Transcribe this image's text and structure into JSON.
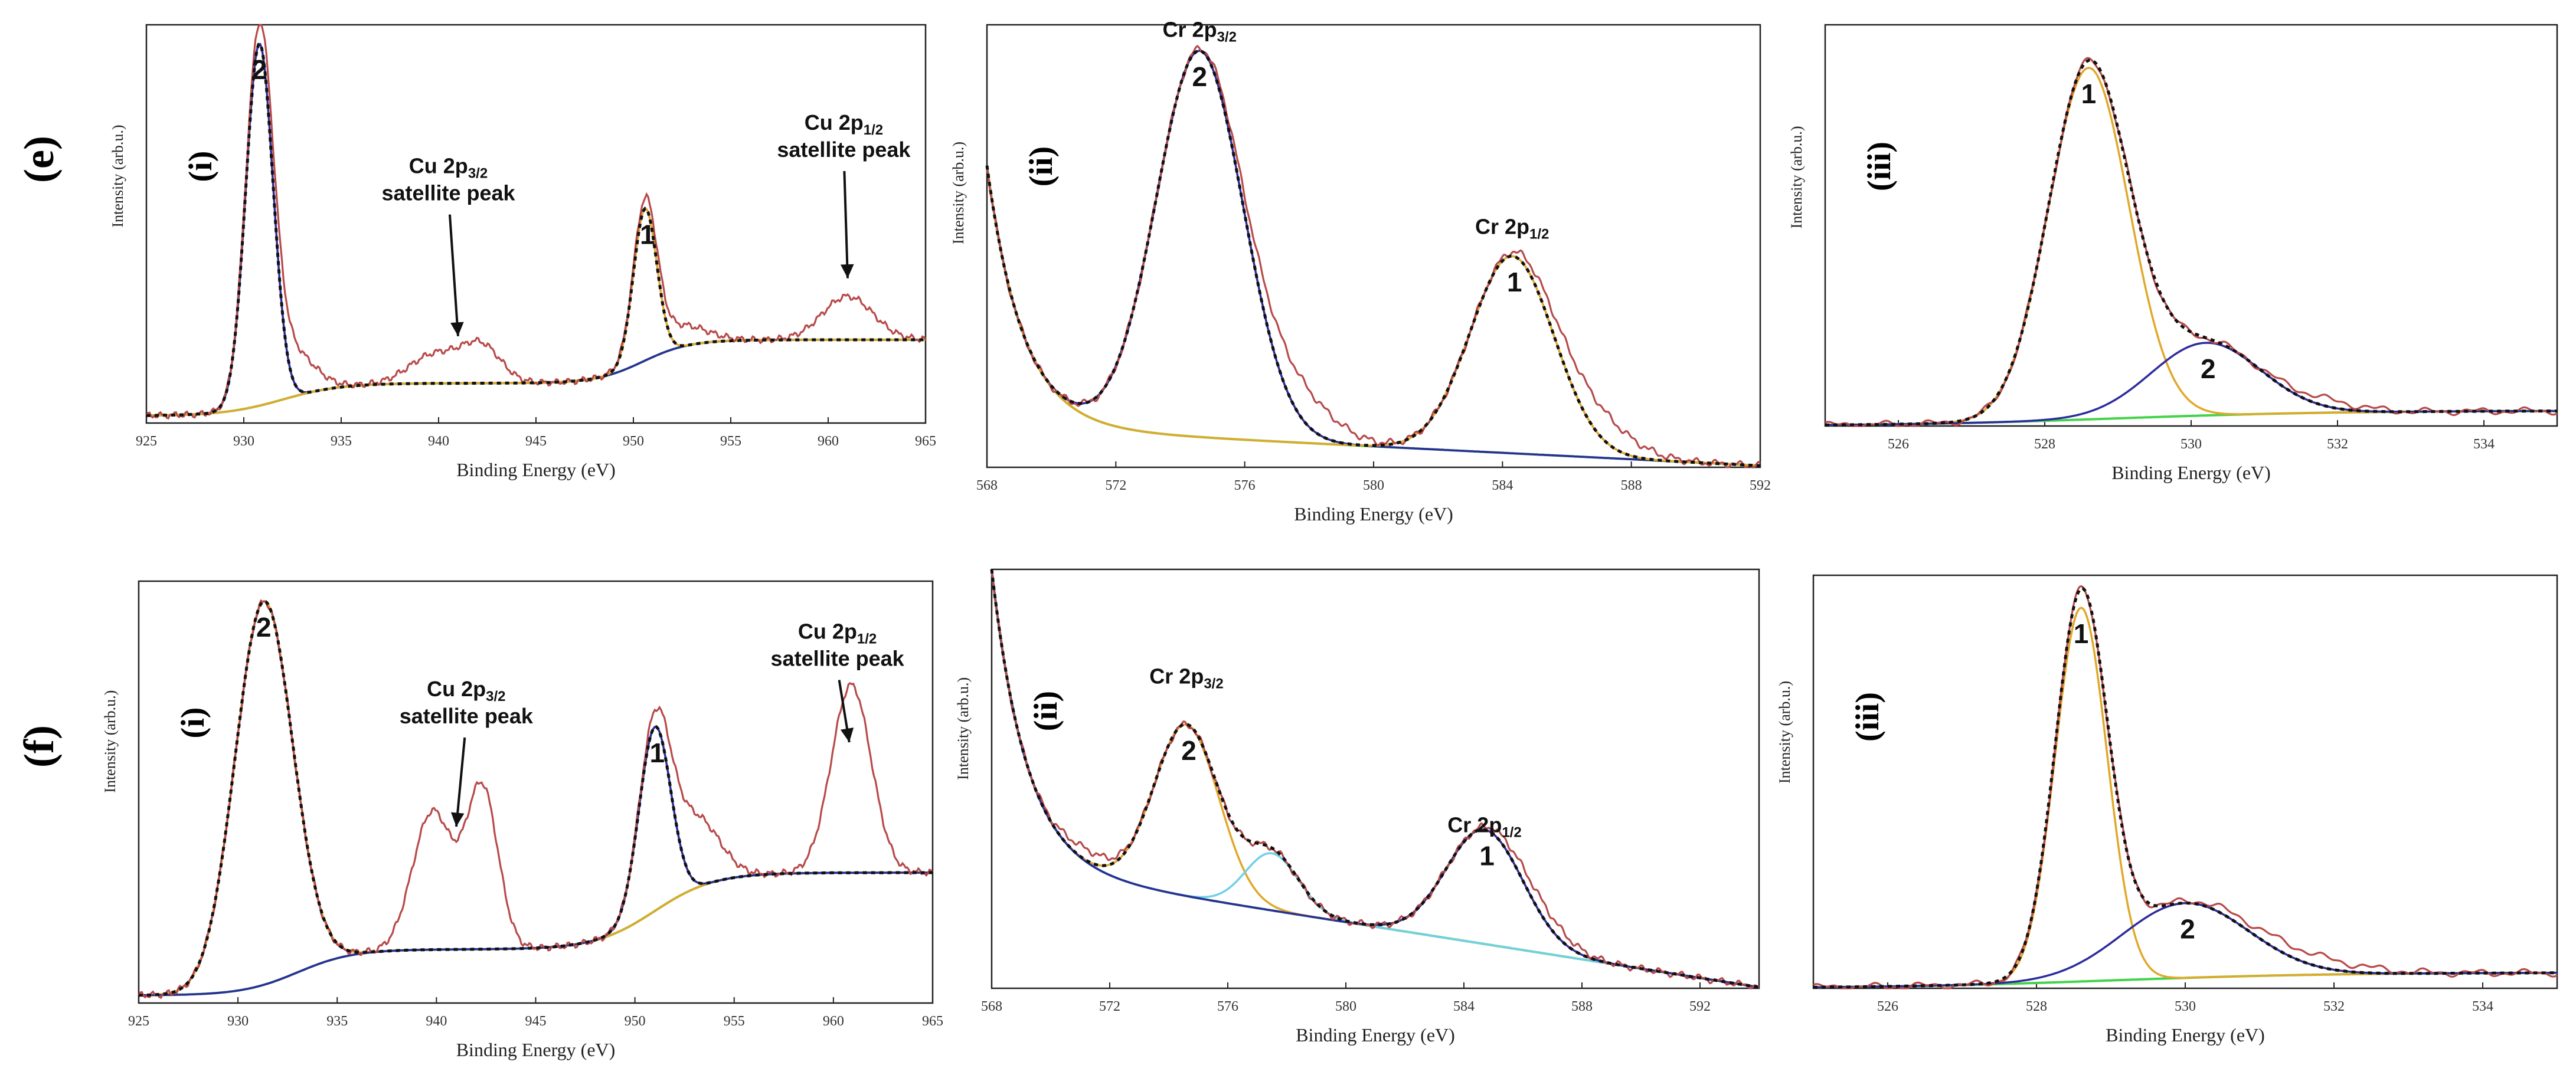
{
  "figure": {
    "rows": [
      {
        "label": "(e)",
        "panels": [
          0,
          1,
          2
        ]
      },
      {
        "label": "(f)",
        "panels": [
          3,
          4,
          5
        ]
      }
    ]
  },
  "colors": {
    "experimental": "#b84a4a",
    "envelope": "#111111",
    "peak_blue": "#2c2c9c",
    "peak_gold": "#e0a82a",
    "peak_cyan": "#6fd0e8",
    "background": "#45d24a",
    "frame": "#222222"
  },
  "chart_data": [
    {
      "type": "line",
      "row": "(e)",
      "panel_label": "(i)",
      "xlabel": "Binding Energy (eV)",
      "ylabel": "Intensity (arb.u.)",
      "xlim": [
        925,
        965
      ],
      "ylim": [
        0,
        1.1
      ],
      "xticks": [
        925,
        930,
        935,
        940,
        945,
        950,
        955,
        960,
        965
      ],
      "tick_labels": [
        "925",
        "930",
        "935",
        "940",
        "945",
        "950",
        "955",
        "960",
        "965"
      ],
      "base": {
        "kind": "step",
        "y0": 0.02,
        "steps": [
          [
            932,
            0.09,
            1.5
          ],
          [
            950.5,
            0.12,
            1.2
          ]
        ]
      },
      "peaks": [
        {
          "label": "2",
          "center": 930.8,
          "height": 1.0,
          "width": 0.7,
          "color": "#2c2c9c"
        },
        {
          "label": "1",
          "center": 950.6,
          "height": 0.42,
          "width": 0.6,
          "color": "#e0a82a"
        }
      ],
      "extra_experimental": [
        {
          "center": 932.3,
          "height": 0.13,
          "width": 1.2
        },
        {
          "center": 939.8,
          "height": 0.08,
          "width": 1.3
        },
        {
          "center": 942.2,
          "height": 0.1,
          "width": 1.0
        },
        {
          "center": 952.2,
          "height": 0.06,
          "width": 1.4
        },
        {
          "center": 961.0,
          "height": 0.12,
          "width": 1.3
        }
      ],
      "annotations": [
        {
          "main": "Cu 2p",
          "sub": "3/2",
          "line2": "satellite peak",
          "x": 940.5,
          "y": 0.69,
          "arrow_to": [
            941,
            0.24
          ]
        },
        {
          "main": "Cu 2p",
          "sub": "1/2",
          "line2": "satellite peak",
          "x": 960.8,
          "y": 0.81,
          "arrow_to": [
            961,
            0.4
          ]
        }
      ]
    },
    {
      "type": "line",
      "row": "(e)",
      "panel_label": "(ii)",
      "xlabel": "Binding Energy (eV)",
      "ylabel": "Intensity (arb.u.)",
      "xlim": [
        568,
        592
      ],
      "ylim": [
        0,
        1.1
      ],
      "xticks": [
        568,
        572,
        576,
        580,
        584,
        588,
        592
      ],
      "tick_labels": [
        "568",
        "572",
        "576",
        "580",
        "584",
        "588",
        "592"
      ],
      "base": {
        "kind": "decay",
        "a": 0.65,
        "k": 0.9,
        "y0": 0.1,
        "slope": -0.004,
        "end": 592
      },
      "peaks": [
        {
          "label": "2",
          "center": 574.6,
          "height": 0.96,
          "width": 1.35,
          "color": "#2c2c9c"
        },
        {
          "label": "1",
          "center": 584.3,
          "height": 0.49,
          "width": 1.3,
          "color": "#e0a82a"
        }
      ],
      "extra_experimental": [
        {
          "center": 577.5,
          "height": 0.1,
          "width": 1.2
        },
        {
          "center": 586.7,
          "height": 0.08,
          "width": 1.2
        }
      ],
      "annotations": [
        {
          "main": "Cr 2p",
          "sub": "3/2",
          "x": 574.6,
          "y": 1.07
        },
        {
          "main": "Cr 2p",
          "sub": "1/2",
          "x": 584.3,
          "y": 0.58
        }
      ]
    },
    {
      "type": "line",
      "row": "(e)",
      "panel_label": "(iii)",
      "xlabel": "Binding Energy (eV)",
      "ylabel": "Intensity (arb.u.)",
      "xlim": [
        525,
        535
      ],
      "ylim": [
        0,
        1.05
      ],
      "xticks": [
        526,
        528,
        530,
        532,
        534
      ],
      "tick_labels": [
        "526",
        "528",
        "530",
        "532",
        "534"
      ],
      "base": {
        "kind": "step",
        "y0": 0.0,
        "steps": [
          [
            529,
            0.04,
            1.5
          ]
        ]
      },
      "peaks": [
        {
          "label": "1",
          "center": 528.6,
          "height": 0.92,
          "width": 0.55,
          "color": "#e0a82a"
        },
        {
          "label": "2",
          "center": 530.2,
          "height": 0.19,
          "width": 0.75,
          "color": "#2c2c9c"
        }
      ],
      "extra_experimental": [
        {
          "center": 531.8,
          "height": 0.02,
          "width": 0.5
        }
      ],
      "annotations": []
    },
    {
      "type": "line",
      "row": "(f)",
      "panel_label": "(i)",
      "xlabel": "Binding Energy (eV)",
      "ylabel": "Intensity (arb.u.)",
      "xlim": [
        925,
        965
      ],
      "ylim": [
        0,
        1.1
      ],
      "xticks": [
        925,
        930,
        935,
        940,
        945,
        950,
        955,
        960,
        965
      ],
      "tick_labels": [
        "925",
        "930",
        "935",
        "940",
        "945",
        "950",
        "955",
        "960",
        "965"
      ],
      "base": {
        "kind": "step",
        "y0": 0.02,
        "steps": [
          [
            933,
            0.12,
            1.4
          ],
          [
            951,
            0.2,
            1.5
          ]
        ]
      },
      "peaks": [
        {
          "label": "2",
          "center": 931.3,
          "height": 1.0,
          "width": 1.45,
          "color": "#e0a82a"
        },
        {
          "label": "1",
          "center": 951.0,
          "height": 0.48,
          "width": 0.8,
          "color": "#2c2c9c"
        }
      ],
      "extra_experimental": [
        {
          "center": 939.8,
          "height": 0.36,
          "width": 1.0
        },
        {
          "center": 942.3,
          "height": 0.42,
          "width": 0.8
        },
        {
          "center": 953.0,
          "height": 0.18,
          "width": 1.2
        },
        {
          "center": 960.9,
          "height": 0.49,
          "width": 1.0
        }
      ],
      "annotations": [
        {
          "main": "Cu 2p",
          "sub": "3/2",
          "line2": "satellite peak",
          "x": 941.5,
          "y": 0.8,
          "arrow_to": [
            941,
            0.46
          ]
        },
        {
          "main": "Cu 2p",
          "sub": "1/2",
          "line2": "satellite peak",
          "x": 960.2,
          "y": 0.95,
          "arrow_to": [
            960.8,
            0.68
          ]
        }
      ]
    },
    {
      "type": "line",
      "row": "(f)",
      "panel_label": "(ii)",
      "xlabel": "Binding Energy (eV)",
      "ylabel": "Intensity (arb.u.)",
      "xlim": [
        568,
        594
      ],
      "ylim": [
        0,
        1.1
      ],
      "xticks": [
        568,
        572,
        576,
        580,
        584,
        588,
        592
      ],
      "tick_labels": [
        "568",
        "572",
        "576",
        "580",
        "584",
        "588",
        "592"
      ],
      "base": {
        "kind": "decay",
        "a": 0.78,
        "k": 0.85,
        "y0": 0.32,
        "slope": -0.0122,
        "end": 594
      },
      "peaks": [
        {
          "label": "2",
          "center": 574.6,
          "height": 0.45,
          "width": 1.1,
          "color": "#e0a82a"
        },
        {
          "label": "",
          "center": 577.5,
          "height": 0.15,
          "width": 0.9,
          "color": "#6fd0e8"
        },
        {
          "label": "1",
          "center": 584.7,
          "height": 0.3,
          "width": 1.3,
          "color": "#2c2c9c"
        }
      ],
      "extra_experimental": [
        {
          "center": 571.2,
          "height": 0.03,
          "width": 0.8
        },
        {
          "center": 586.5,
          "height": 0.04,
          "width": 1.0
        }
      ],
      "annotations": [
        {
          "main": "Cr 2p",
          "sub": "3/2",
          "x": 574.6,
          "y": 0.8
        },
        {
          "main": "Cr 2p",
          "sub": "1/2",
          "x": 584.7,
          "y": 0.41
        }
      ]
    },
    {
      "type": "line",
      "row": "(f)",
      "panel_label": "(iii)",
      "xlabel": "Binding Energy (eV)",
      "ylabel": "Intensity (arb.u.)",
      "xlim": [
        525,
        535
      ],
      "ylim": [
        0,
        1.05
      ],
      "xticks": [
        526,
        528,
        530,
        532,
        534
      ],
      "tick_labels": [
        "526",
        "528",
        "530",
        "532",
        "534"
      ],
      "base": {
        "kind": "step",
        "y0": 0.0,
        "steps": [
          [
            529,
            0.04,
            1.5
          ]
        ]
      },
      "peaks": [
        {
          "label": "1",
          "center": 528.6,
          "height": 0.95,
          "width": 0.35,
          "color": "#e0a82a"
        },
        {
          "label": "2",
          "center": 530.0,
          "height": 0.19,
          "width": 0.85,
          "color": "#2c2c9c"
        }
      ],
      "extra_experimental": [
        {
          "center": 531.5,
          "height": 0.03,
          "width": 0.8
        }
      ],
      "annotations": []
    }
  ]
}
